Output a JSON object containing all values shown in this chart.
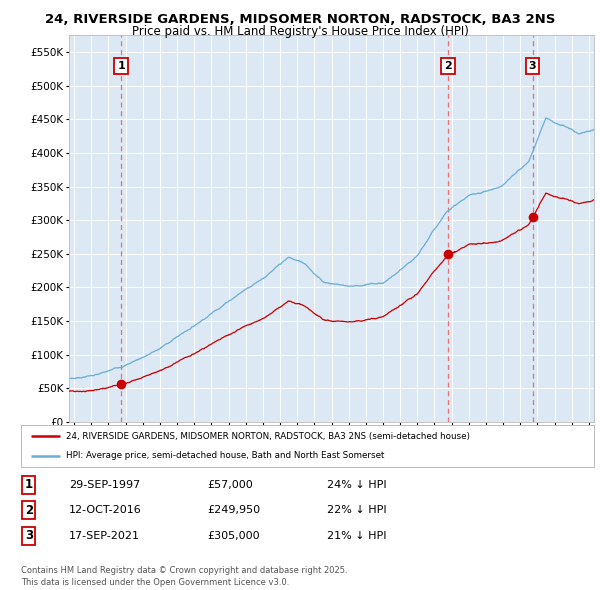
{
  "title_line1": "24, RIVERSIDE GARDENS, MIDSOMER NORTON, RADSTOCK, BA3 2NS",
  "title_line2": "Price paid vs. HM Land Registry's House Price Index (HPI)",
  "background_color": "#dce9f5",
  "fig_bg_color": "#ffffff",
  "sale_dates_num": [
    1997.747,
    2016.784,
    2021.716
  ],
  "sale_prices": [
    57000,
    249950,
    305000
  ],
  "sale_labels": [
    "1",
    "2",
    "3"
  ],
  "legend_line1": "24, RIVERSIDE GARDENS, MIDSOMER NORTON, RADSTOCK, BA3 2NS (semi-detached house)",
  "legend_line2": "HPI: Average price, semi-detached house, Bath and North East Somerset",
  "table_data": [
    {
      "label": "1",
      "date": "29-SEP-1997",
      "price": "£57,000",
      "hpi": "24% ↓ HPI"
    },
    {
      "label": "2",
      "date": "12-OCT-2016",
      "price": "£249,950",
      "hpi": "22% ↓ HPI"
    },
    {
      "label": "3",
      "date": "17-SEP-2021",
      "price": "£305,000",
      "hpi": "21% ↓ HPI"
    }
  ],
  "footnote": "Contains HM Land Registry data © Crown copyright and database right 2025.\nThis data is licensed under the Open Government Licence v3.0.",
  "hpi_color": "#6baed6",
  "sale_color": "#cc0000",
  "dashed_color": "#e87070",
  "ylim": [
    0,
    575000
  ],
  "xlim_start": 1994.7,
  "xlim_end": 2025.3,
  "yticks": [
    0,
    50000,
    100000,
    150000,
    200000,
    250000,
    300000,
    350000,
    400000,
    450000,
    500000,
    550000
  ]
}
